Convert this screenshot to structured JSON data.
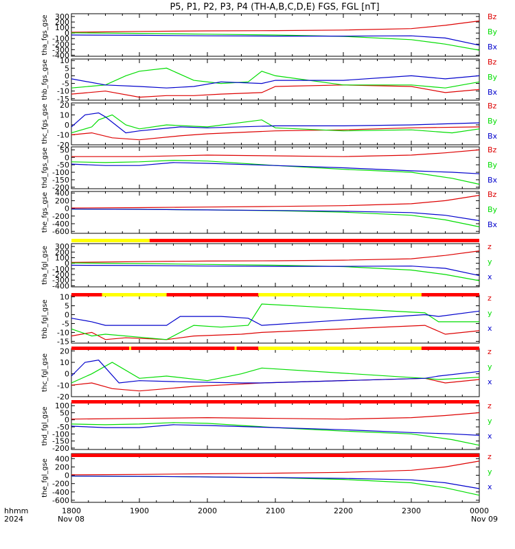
{
  "title": "P5, P1, P2, P3, P4 (TH-A,B,C,D,E) FGS, FGL [nT]",
  "time_axis": {
    "label_top": "hhmm",
    "label_bottom": "2024",
    "ticks": [
      "1800",
      "1900",
      "2000",
      "2100",
      "2200",
      "2300",
      "0000"
    ],
    "dates": {
      "start": "Nov 08",
      "end": "Nov 09"
    },
    "range": [
      "2024-11-08 18:00",
      "2024-11-09 00:00"
    ]
  },
  "colors": {
    "x": "#0000cc",
    "y": "#00dd00",
    "z": "#dd0000",
    "bar_red": "#ff0000",
    "bar_yellow": "#ffff00"
  },
  "chart_data": [
    {
      "type": "line",
      "ylabel": "tha_fgs_gse",
      "legend": [
        "Bz",
        "By",
        "Bx"
      ],
      "yticks": [
        "300",
        "200",
        "100",
        "0",
        "-100",
        "-200",
        "-300",
        "-400"
      ],
      "ylim": [
        -420,
        350
      ],
      "series": [
        {
          "name": "Bz",
          "x": [
            0,
            1,
            2,
            3,
            4,
            5,
            5.5,
            6
          ],
          "y": [
            15,
            30,
            40,
            45,
            55,
            80,
            140,
            220
          ]
        },
        {
          "name": "By",
          "x": [
            0,
            1,
            2,
            3,
            4,
            5,
            5.5,
            6
          ],
          "y": [
            5,
            -5,
            -20,
            -35,
            -60,
            -120,
            -200,
            -310
          ]
        },
        {
          "name": "Bx",
          "x": [
            0,
            1,
            2,
            3,
            4,
            5,
            5.5,
            6
          ],
          "y": [
            -35,
            -40,
            -50,
            -55,
            -55,
            -50,
            -90,
            -220
          ]
        }
      ]
    },
    {
      "type": "line",
      "ylabel": "thb_fgs_gse",
      "legend": [
        "Bz",
        "By",
        "Bx"
      ],
      "yticks": [
        "10",
        "5",
        "0",
        "-5",
        "-10",
        "-15"
      ],
      "ylim": [
        -16,
        11
      ],
      "series": [
        {
          "name": "Bz",
          "x": [
            0,
            0.5,
            1,
            1.4,
            1.8,
            2.2,
            2.8,
            3,
            4,
            5,
            5.5,
            6
          ],
          "y": [
            -12,
            -10,
            -14,
            -13,
            -13,
            -12,
            -11,
            -7,
            -6,
            -7,
            -11,
            -9
          ]
        },
        {
          "name": "By",
          "x": [
            0,
            0.5,
            0.8,
            1,
            1.4,
            1.8,
            2.2,
            2.6,
            2.8,
            3,
            4,
            5,
            5.5,
            6
          ],
          "y": [
            -8,
            -6,
            0,
            3,
            5,
            -3,
            -5,
            -4,
            3,
            0,
            -6,
            -6,
            -8,
            -4
          ]
        },
        {
          "name": "Bx",
          "x": [
            0,
            0.5,
            1,
            1.4,
            1.8,
            2.2,
            2.8,
            3,
            4,
            5,
            5.5,
            6
          ],
          "y": [
            -2,
            -6,
            -7,
            -8,
            -7,
            -4,
            -5,
            -3,
            -3,
            0,
            -2,
            0
          ]
        }
      ]
    },
    {
      "type": "line",
      "ylabel": "thc_fgs_gse",
      "legend": [
        "Bz",
        "By",
        "Bx"
      ],
      "yticks": [
        "20",
        "10",
        "0",
        "-10",
        "-20"
      ],
      "ylim": [
        -20,
        22
      ],
      "series": [
        {
          "name": "Bz",
          "x": [
            0,
            0.3,
            0.6,
            1,
            1.6,
            2,
            3,
            4,
            5,
            6
          ],
          "y": [
            -10,
            -8,
            -13,
            -15,
            -11,
            -9,
            -6,
            -5,
            -3,
            -2
          ]
        },
        {
          "name": "By",
          "x": [
            0,
            0.3,
            0.4,
            0.6,
            0.8,
            1,
            1.4,
            2,
            2.8,
            3,
            4,
            5,
            5.6,
            6
          ],
          "y": [
            -8,
            -2,
            5,
            10,
            0,
            -4,
            0,
            -2,
            5,
            -3,
            -6,
            -5,
            -8,
            -4
          ]
        },
        {
          "name": "Bx",
          "x": [
            0,
            0.2,
            0.4,
            0.5,
            0.8,
            1,
            1.6,
            2,
            3,
            4,
            5,
            6
          ],
          "y": [
            -2,
            10,
            12,
            8,
            -8,
            -6,
            -2,
            -3,
            -1,
            -1,
            0,
            2
          ]
        }
      ]
    },
    {
      "type": "line",
      "ylabel": "thd_fgs_gse",
      "legend": [
        "Bz",
        "By",
        "Bx"
      ],
      "yticks": [
        "50",
        "0",
        "-50",
        "-100",
        "-150",
        "-200"
      ],
      "ylim": [
        -210,
        70
      ],
      "series": [
        {
          "name": "Bz",
          "x": [
            0,
            1,
            2,
            3,
            4,
            5,
            5.5,
            6
          ],
          "y": [
            5,
            5,
            15,
            10,
            5,
            15,
            30,
            50
          ]
        },
        {
          "name": "By",
          "x": [
            0,
            0.5,
            1,
            1.5,
            2,
            3,
            4,
            5,
            5.6,
            6
          ],
          "y": [
            -30,
            -35,
            -30,
            -20,
            -25,
            -55,
            -80,
            -100,
            -140,
            -180
          ]
        },
        {
          "name": "Bx",
          "x": [
            0,
            0.5,
            1,
            1.5,
            2,
            3,
            4,
            5,
            5.6,
            6
          ],
          "y": [
            -45,
            -55,
            -55,
            -35,
            -40,
            -55,
            -70,
            -90,
            -100,
            -110
          ]
        }
      ]
    },
    {
      "type": "line",
      "ylabel": "the_fgs_gse",
      "legend": [
        "Bz",
        "By",
        "Bx"
      ],
      "yticks": [
        "400",
        "200",
        "0",
        "-200",
        "-400",
        "-600"
      ],
      "ylim": [
        -650,
        440
      ],
      "series": [
        {
          "name": "Bz",
          "x": [
            0,
            1,
            2,
            3,
            4,
            5,
            5.5,
            6
          ],
          "y": [
            10,
            20,
            35,
            50,
            70,
            120,
            200,
            340
          ]
        },
        {
          "name": "By",
          "x": [
            0,
            1,
            2,
            3,
            4,
            5,
            5.5,
            6
          ],
          "y": [
            -20,
            -25,
            -40,
            -60,
            -100,
            -180,
            -300,
            -480
          ]
        },
        {
          "name": "Bx",
          "x": [
            0,
            1,
            2,
            3,
            4,
            5,
            5.5,
            6
          ],
          "y": [
            -20,
            -25,
            -40,
            -55,
            -75,
            -110,
            -180,
            -320
          ]
        }
      ]
    },
    {
      "type": "line",
      "ylabel": "tha_fgl_gse",
      "legend": [
        "z",
        "y",
        "x"
      ],
      "yticks": [
        "300",
        "200",
        "100",
        "0",
        "-100",
        "-200",
        "-300",
        "-400"
      ],
      "ylim": [
        -420,
        350
      ],
      "series": [
        {
          "name": "z",
          "x": [
            0,
            1,
            2,
            3,
            4,
            5,
            5.5,
            6
          ],
          "y": [
            15,
            30,
            40,
            45,
            55,
            80,
            140,
            220
          ]
        },
        {
          "name": "y",
          "x": [
            0,
            1,
            2,
            3,
            4,
            5,
            5.5,
            6
          ],
          "y": [
            5,
            -5,
            -20,
            -35,
            -60,
            -120,
            -200,
            -310
          ]
        },
        {
          "name": "x",
          "x": [
            0,
            1,
            2,
            3,
            4,
            5,
            5.5,
            6
          ],
          "y": [
            -35,
            -40,
            -50,
            -55,
            -55,
            -50,
            -90,
            -220
          ]
        }
      ]
    },
    {
      "type": "line",
      "ylabel": "thb_fgl_gse",
      "legend": [
        "z",
        "y",
        "x"
      ],
      "yticks": [
        "10",
        "5",
        "0",
        "-5",
        "-10",
        "-15"
      ],
      "ylim": [
        -16,
        11
      ],
      "series": [
        {
          "name": "z",
          "x": [
            0,
            0.3,
            0.5,
            0.8,
            1.4,
            1.8,
            2.5,
            2.8,
            5.2,
            5.5,
            6
          ],
          "y": [
            -12,
            -10,
            -14,
            -13,
            -14,
            -12,
            -11,
            -10,
            -6,
            -11,
            -9
          ]
        },
        {
          "name": "y",
          "x": [
            0,
            0.3,
            0.5,
            1.4,
            1.8,
            2.2,
            2.6,
            2.8,
            5.2,
            5.4,
            6
          ],
          "y": [
            -8,
            -12,
            -11,
            -14,
            -6,
            -7,
            -6,
            6,
            1,
            -4,
            -4
          ]
        },
        {
          "name": "x",
          "x": [
            0,
            0.3,
            0.5,
            1.4,
            1.6,
            2.2,
            2.6,
            2.8,
            5.2,
            5.4,
            6
          ],
          "y": [
            -2,
            -4,
            -6,
            -6,
            -1,
            -1,
            -2,
            -6,
            0,
            -1,
            2
          ]
        }
      ]
    },
    {
      "type": "line",
      "ylabel": "thc_fgl_gse",
      "legend": [
        "z",
        "y",
        "x"
      ],
      "yticks": [
        "20",
        "10",
        "0",
        "-10",
        "-20"
      ],
      "ylim": [
        -20,
        22
      ],
      "series": [
        {
          "name": "z",
          "x": [
            0,
            0.3,
            0.6,
            1,
            1.8,
            2.5,
            2.8,
            5.2,
            5.5,
            6
          ],
          "y": [
            -10,
            -8,
            -13,
            -15,
            -11,
            -9,
            -8,
            -4,
            -8,
            -5
          ]
        },
        {
          "name": "y",
          "x": [
            0,
            0.3,
            0.6,
            1,
            1.4,
            2,
            2.5,
            2.8,
            5.2,
            5.4,
            6
          ],
          "y": [
            -8,
            0,
            10,
            -4,
            -2,
            -6,
            0,
            5,
            -4,
            -5,
            -3
          ]
        },
        {
          "name": "x",
          "x": [
            0,
            0.2,
            0.4,
            0.7,
            1,
            1.6,
            2.5,
            2.8,
            5.2,
            5.4,
            6
          ],
          "y": [
            -2,
            10,
            12,
            -8,
            -6,
            -7,
            -8,
            -8,
            -4,
            -2,
            2
          ]
        }
      ]
    },
    {
      "type": "line",
      "ylabel": "thd_fgl_gse",
      "legend": [
        "z",
        "y",
        "x"
      ],
      "yticks": [
        "100",
        "50",
        "0",
        "-50",
        "-100",
        "-150",
        "-200"
      ],
      "ylim": [
        -210,
        120
      ],
      "series": [
        {
          "name": "z",
          "x": [
            0,
            1,
            2,
            3,
            4,
            5,
            5.5,
            6
          ],
          "y": [
            5,
            10,
            15,
            10,
            5,
            15,
            30,
            50
          ]
        },
        {
          "name": "y",
          "x": [
            0,
            0.5,
            1,
            1.5,
            2,
            3,
            4,
            5,
            5.6,
            6
          ],
          "y": [
            -30,
            -35,
            -30,
            -20,
            -25,
            -55,
            -80,
            -100,
            -140,
            -180
          ]
        },
        {
          "name": "x",
          "x": [
            0,
            0.5,
            1,
            1.5,
            2,
            3,
            4,
            5,
            5.6,
            6
          ],
          "y": [
            -45,
            -55,
            -55,
            -35,
            -40,
            -55,
            -70,
            -90,
            -100,
            -110
          ]
        }
      ]
    },
    {
      "type": "line",
      "ylabel": "the_fgl_gse",
      "legend": [
        "z",
        "y",
        "x"
      ],
      "yticks": [
        "400",
        "200",
        "0",
        "-200",
        "-400",
        "-600"
      ],
      "ylim": [
        -650,
        520
      ],
      "series": [
        {
          "name": "z",
          "x": [
            0,
            1,
            2,
            3,
            4,
            5,
            5.5,
            6
          ],
          "y": [
            10,
            20,
            35,
            50,
            70,
            120,
            200,
            340
          ]
        },
        {
          "name": "y",
          "x": [
            0,
            1,
            2,
            3,
            4,
            5,
            5.5,
            6
          ],
          "y": [
            -20,
            -25,
            -40,
            -60,
            -100,
            -180,
            -300,
            -480
          ]
        },
        {
          "name": "x",
          "x": [
            0,
            1,
            2,
            3,
            4,
            5,
            5.5,
            6
          ],
          "y": [
            -20,
            -25,
            -40,
            -55,
            -75,
            -110,
            -180,
            -320
          ]
        }
      ]
    }
  ],
  "mode_bars": [
    {
      "segments": [
        {
          "from": 0,
          "to": 1.15,
          "color": "yellow"
        },
        {
          "from": 1.15,
          "to": 6,
          "color": "red"
        }
      ]
    },
    {
      "segments": [
        {
          "from": 0,
          "to": 0.45,
          "color": "red"
        },
        {
          "from": 0.45,
          "to": 1.4,
          "color": "yellow"
        },
        {
          "from": 1.4,
          "to": 2.75,
          "color": "red"
        },
        {
          "from": 2.75,
          "to": 5.15,
          "color": "yellow"
        },
        {
          "from": 5.15,
          "to": 6,
          "color": "red"
        }
      ]
    },
    {
      "segments": [
        {
          "from": 0,
          "to": 0.85,
          "color": "red"
        },
        {
          "from": 0.85,
          "to": 0.88,
          "color": "yellow"
        },
        {
          "from": 0.88,
          "to": 2.4,
          "color": "red"
        },
        {
          "from": 2.4,
          "to": 2.43,
          "color": "yellow"
        },
        {
          "from": 2.43,
          "to": 2.75,
          "color": "red"
        },
        {
          "from": 2.75,
          "to": 5.15,
          "color": "yellow"
        },
        {
          "from": 5.15,
          "to": 6,
          "color": "red"
        }
      ]
    },
    {
      "segments": [
        {
          "from": 0,
          "to": 6,
          "color": "red"
        }
      ]
    },
    {
      "segments": [
        {
          "from": 0,
          "to": 6,
          "color": "red"
        }
      ]
    }
  ]
}
